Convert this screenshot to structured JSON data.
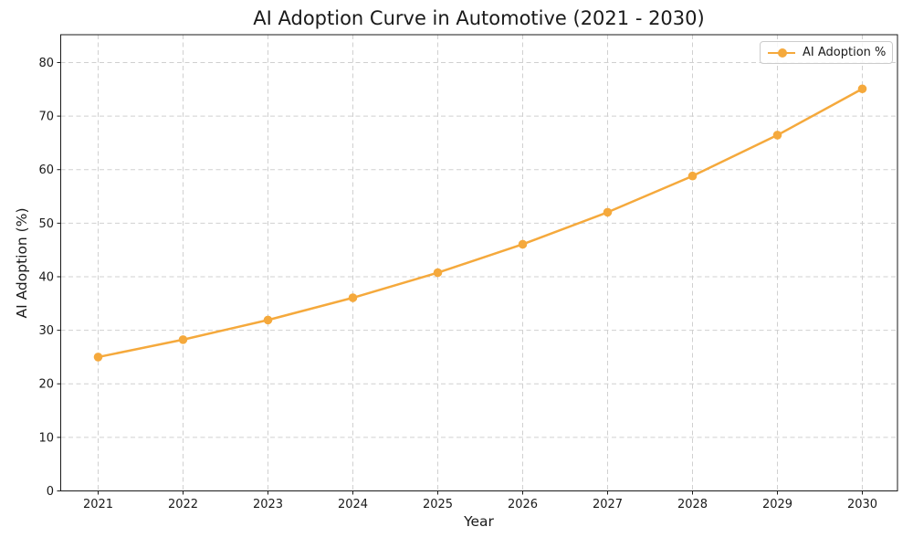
{
  "chart_data": {
    "type": "line",
    "title": "AI Adoption Curve in Automotive (2021 - 2030)",
    "xlabel": "Year",
    "ylabel": "AI Adoption (%)",
    "categories": [
      "2021",
      "2022",
      "2023",
      "2024",
      "2025",
      "2026",
      "2027",
      "2028",
      "2029",
      "2030"
    ],
    "series": [
      {
        "name": "AI Adoption %",
        "values": [
          25.0,
          28.25,
          31.92,
          36.07,
          40.76,
          46.06,
          52.04,
          58.81,
          66.45,
          75.09
        ],
        "color": "#F5A93C",
        "marker": "circle"
      }
    ],
    "yticks": [
      0,
      10,
      20,
      30,
      40,
      50,
      60,
      70,
      80
    ],
    "ylim": [
      0,
      85.2
    ],
    "grid": true,
    "grid_style": "dashed",
    "legend_position": "upper right"
  },
  "colors": {
    "accent": "#F5A93C",
    "grid": "#D0D0D0",
    "axis": "#1a1a1a",
    "text": "#1a1a1a",
    "legend_border": "#CCCCCC",
    "background": "#FFFFFF"
  }
}
